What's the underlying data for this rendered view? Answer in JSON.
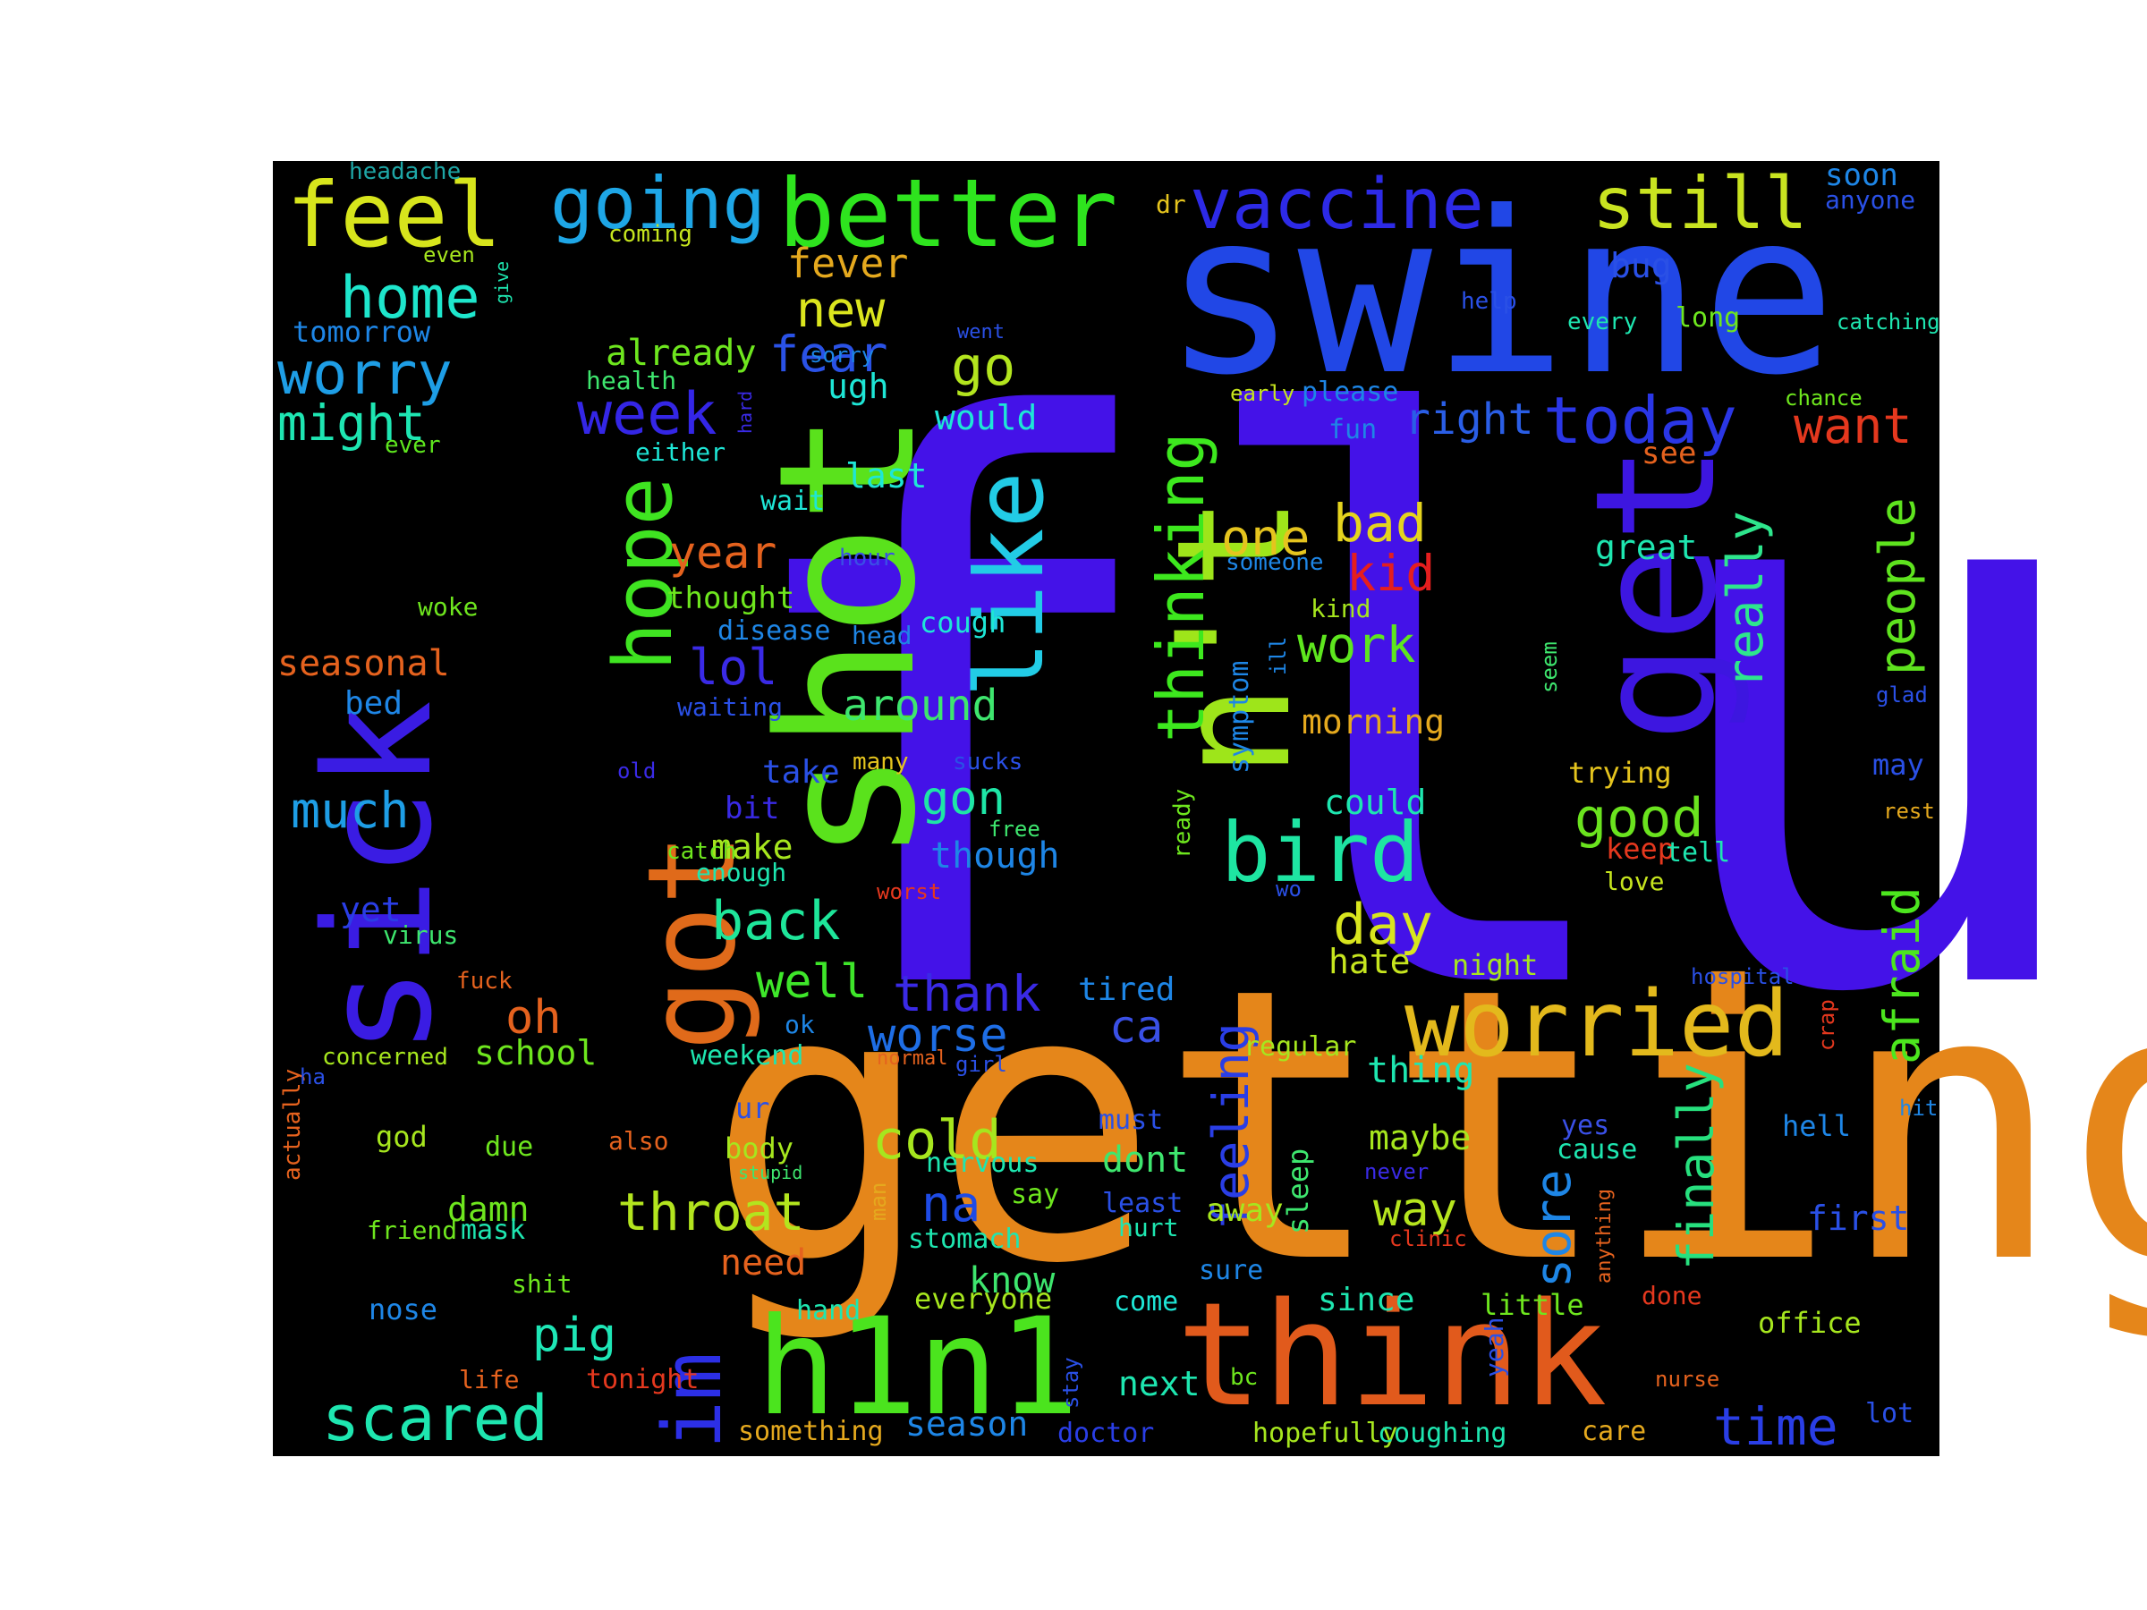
{
  "figure": {
    "background_color": "#000000",
    "page_color": "#ffffff"
  },
  "words": [
    {
      "text": "flu",
      "color": "#4412e8"
    },
    {
      "text": "getting",
      "color": "#e5861a"
    },
    {
      "text": "swine",
      "color": "#2147e6"
    },
    {
      "text": "shot",
      "color": "#5ae21c"
    },
    {
      "text": "n't",
      "color": "#9ee51a"
    },
    {
      "text": "get",
      "color": "#3d16e0"
    },
    {
      "text": "sick",
      "color": "#3a1ce3"
    },
    {
      "text": "think",
      "color": "#e15a1c"
    },
    {
      "text": "h1n1",
      "color": "#4be41e"
    },
    {
      "text": "got",
      "color": "#e06a1a"
    },
    {
      "text": "like",
      "color": "#22cce6"
    },
    {
      "text": "better",
      "color": "#2ee41e"
    },
    {
      "text": "worried",
      "color": "#e3b91c"
    },
    {
      "text": "feel",
      "color": "#d7e51c"
    },
    {
      "text": "vaccine",
      "color": "#2d2ae6"
    },
    {
      "text": "still",
      "color": "#c9e320"
    },
    {
      "text": "going",
      "color": "#1ea6e6"
    },
    {
      "text": "hope",
      "color": "#3fe421"
    },
    {
      "text": "bird",
      "color": "#1ee5a2"
    },
    {
      "text": "im",
      "color": "#2c2fe6"
    },
    {
      "text": "scared",
      "color": "#1ee6b0"
    },
    {
      "text": "today",
      "color": "#2a36e6"
    },
    {
      "text": "thinking",
      "color": "#3de81e"
    },
    {
      "text": "home",
      "color": "#1ee6cc"
    },
    {
      "text": "worry",
      "color": "#1e9ee6"
    },
    {
      "text": "might",
      "color": "#1ee6b2"
    },
    {
      "text": "week",
      "color": "#3426e6"
    },
    {
      "text": "fear",
      "color": "#2a52e6"
    },
    {
      "text": "go",
      "color": "#b3e51e"
    },
    {
      "text": "new",
      "color": "#dbe51e"
    },
    {
      "text": "fever",
      "color": "#e5a91e"
    },
    {
      "text": "really",
      "color": "#2ee68d"
    },
    {
      "text": "people",
      "color": "#5ee31e"
    },
    {
      "text": "feeling",
      "color": "#2a3ee6"
    },
    {
      "text": "afraid",
      "color": "#4ce61e"
    },
    {
      "text": "finally",
      "color": "#27e07e"
    },
    {
      "text": "sore",
      "color": "#1e86e6"
    },
    {
      "text": "one",
      "color": "#e5c41e"
    },
    {
      "text": "bad",
      "color": "#e5d41e"
    },
    {
      "text": "kid",
      "color": "#e51e1e"
    },
    {
      "text": "work",
      "color": "#5ee61e"
    },
    {
      "text": "good",
      "color": "#6ae31e"
    },
    {
      "text": "day",
      "color": "#d8e51e"
    },
    {
      "text": "right",
      "color": "#2a5ee6"
    },
    {
      "text": "want",
      "color": "#e5381e"
    },
    {
      "text": "year",
      "color": "#e5621e"
    },
    {
      "text": "lol",
      "color": "#3a2ae6"
    },
    {
      "text": "around",
      "color": "#3ee66e"
    },
    {
      "text": "back",
      "color": "#1ee69a"
    },
    {
      "text": "gon",
      "color": "#1ee6a6"
    },
    {
      "text": "well",
      "color": "#3ee62a"
    },
    {
      "text": "thank",
      "color": "#3a2ae6"
    },
    {
      "text": "worse",
      "color": "#1e6ee6"
    },
    {
      "text": "ca",
      "color": "#3a50e6"
    },
    {
      "text": "cold",
      "color": "#a6e61e"
    },
    {
      "text": "throat",
      "color": "#b3e51e"
    },
    {
      "text": "na",
      "color": "#1e4be6"
    },
    {
      "text": "much",
      "color": "#1e9ee6"
    },
    {
      "text": "oh",
      "color": "#e5621e"
    },
    {
      "text": "pig",
      "color": "#1ee6b6"
    },
    {
      "text": "time",
      "color": "#2a3ee6"
    },
    {
      "text": "way",
      "color": "#b6e51e"
    },
    {
      "text": "seasonal",
      "color": "#e5621e"
    },
    {
      "text": "already",
      "color": "#6ee61e"
    },
    {
      "text": "tomorrow",
      "color": "#1e86e6"
    },
    {
      "text": "headache",
      "color": "#1ea6a6"
    },
    {
      "text": "coming",
      "color": "#c6e51e"
    },
    {
      "text": "even",
      "color": "#a6e61e"
    },
    {
      "text": "give",
      "color": "#1ee6b0"
    },
    {
      "text": "ugh",
      "color": "#1ee6d6"
    },
    {
      "text": "health",
      "color": "#3ee66e"
    },
    {
      "text": "ever",
      "color": "#5ee61e"
    },
    {
      "text": "hard",
      "color": "#3a2ae6"
    },
    {
      "text": "either",
      "color": "#1ee6d6"
    },
    {
      "text": "sorry",
      "color": "#1e86e6"
    },
    {
      "text": "went",
      "color": "#2a50e6"
    },
    {
      "text": "would",
      "color": "#1ee6d6"
    },
    {
      "text": "last",
      "color": "#1ee6d6"
    },
    {
      "text": "wait",
      "color": "#1ee6d6"
    },
    {
      "text": "hour",
      "color": "#3a50e6"
    },
    {
      "text": "thought",
      "color": "#6ee61e"
    },
    {
      "text": "disease",
      "color": "#1e86e6"
    },
    {
      "text": "head",
      "color": "#1e86e6"
    },
    {
      "text": "cough",
      "color": "#1ee6d6"
    },
    {
      "text": "woke",
      "color": "#6ee61e"
    },
    {
      "text": "bed",
      "color": "#1e86e6"
    },
    {
      "text": "waiting",
      "color": "#2a50e6"
    },
    {
      "text": "take",
      "color": "#2a50e6"
    },
    {
      "text": "many",
      "color": "#e5c41e"
    },
    {
      "text": "sucks",
      "color": "#2a50e6"
    },
    {
      "text": "old",
      "color": "#3a2ae6"
    },
    {
      "text": "bit",
      "color": "#3a2ae6"
    },
    {
      "text": "free",
      "color": "#3ee66e"
    },
    {
      "text": "make",
      "color": "#a6e61e"
    },
    {
      "text": "catch",
      "color": "#6ee61e"
    },
    {
      "text": "enough",
      "color": "#1ee6b0"
    },
    {
      "text": "though",
      "color": "#1e86e6"
    },
    {
      "text": "worst",
      "color": "#e5381e"
    },
    {
      "text": "yet",
      "color": "#2a3ee6"
    },
    {
      "text": "virus",
      "color": "#3ee66e"
    },
    {
      "text": "fuck",
      "color": "#e5621e"
    },
    {
      "text": "concerned",
      "color": "#a6e61e"
    },
    {
      "text": "school",
      "color": "#6ee61e"
    },
    {
      "text": "ok",
      "color": "#1e86e6"
    },
    {
      "text": "weekend",
      "color": "#1ee6b0"
    },
    {
      "text": "normal",
      "color": "#e5621e"
    },
    {
      "text": "girl",
      "color": "#2a50e6"
    },
    {
      "text": "actually",
      "color": "#e5621e"
    },
    {
      "text": "ha",
      "color": "#2a50e6"
    },
    {
      "text": "god",
      "color": "#a6e61e"
    },
    {
      "text": "due",
      "color": "#6ee61e"
    },
    {
      "text": "also",
      "color": "#e5621e"
    },
    {
      "text": "ur",
      "color": "#2a50e6"
    },
    {
      "text": "body",
      "color": "#a6e61e"
    },
    {
      "text": "stupid",
      "color": "#3ee66e"
    },
    {
      "text": "nervous",
      "color": "#1ee6b0"
    },
    {
      "text": "say",
      "color": "#6ee61e"
    },
    {
      "text": "man",
      "color": "#e5a91e"
    },
    {
      "text": "damn",
      "color": "#6ee61e"
    },
    {
      "text": "friend",
      "color": "#6ee61e"
    },
    {
      "text": "mask",
      "color": "#1ee6b0"
    },
    {
      "text": "stomach",
      "color": "#1ee6b0"
    },
    {
      "text": "need",
      "color": "#e5621e"
    },
    {
      "text": "know",
      "color": "#3ee66e"
    },
    {
      "text": "everyone",
      "color": "#a6e61e"
    },
    {
      "text": "hand",
      "color": "#1ee6b0"
    },
    {
      "text": "come",
      "color": "#1ee6d6"
    },
    {
      "text": "nose",
      "color": "#1e86e6"
    },
    {
      "text": "shit",
      "color": "#6ee61e"
    },
    {
      "text": "life",
      "color": "#e5621e"
    },
    {
      "text": "tonight",
      "color": "#e5381e"
    },
    {
      "text": "something",
      "color": "#e5a91e"
    },
    {
      "text": "season",
      "color": "#1e86e6"
    },
    {
      "text": "doctor",
      "color": "#2a3ee6"
    },
    {
      "text": "next",
      "color": "#1ee6b0"
    },
    {
      "text": "stay",
      "color": "#2a50e6"
    },
    {
      "text": "bc",
      "color": "#6ee61e"
    },
    {
      "text": "hopefully",
      "color": "#a6e61e"
    },
    {
      "text": "coughing",
      "color": "#1ee6b0"
    },
    {
      "text": "care",
      "color": "#e5a91e"
    },
    {
      "text": "lot",
      "color": "#2a50e6"
    },
    {
      "text": "nurse",
      "color": "#e5621e"
    },
    {
      "text": "done",
      "color": "#e5381e"
    },
    {
      "text": "anything",
      "color": "#e5621e"
    },
    {
      "text": "yeah",
      "color": "#2a50e6"
    },
    {
      "text": "little",
      "color": "#6ee61e"
    },
    {
      "text": "since",
      "color": "#1ee6b0"
    },
    {
      "text": "office",
      "color": "#a6e61e"
    },
    {
      "text": "first",
      "color": "#2a50e6"
    },
    {
      "text": "hell",
      "color": "#1e86e6"
    },
    {
      "text": "hit",
      "color": "#1e86e6"
    },
    {
      "text": "cause",
      "color": "#1ee6b0"
    },
    {
      "text": "yes",
      "color": "#3a50e6"
    },
    {
      "text": "never",
      "color": "#3a2ae6"
    },
    {
      "text": "clinic",
      "color": "#e5381e"
    },
    {
      "text": "sure",
      "color": "#1e86e6"
    },
    {
      "text": "hurt",
      "color": "#1ee6b0"
    },
    {
      "text": "least",
      "color": "#2a50e6"
    },
    {
      "text": "dont",
      "color": "#3ee66e"
    },
    {
      "text": "must",
      "color": "#2a50e6"
    },
    {
      "text": "tired",
      "color": "#1e86e6"
    },
    {
      "text": "away",
      "color": "#a6e61e"
    },
    {
      "text": "sleep",
      "color": "#3ee66e"
    },
    {
      "text": "maybe",
      "color": "#a6e61e"
    },
    {
      "text": "thing",
      "color": "#1ee6b0"
    },
    {
      "text": "regular",
      "color": "#a6e61e"
    },
    {
      "text": "night",
      "color": "#a6e61e"
    },
    {
      "text": "hate",
      "color": "#c6e51e"
    },
    {
      "text": "hospital",
      "color": "#2a50e6"
    },
    {
      "text": "crap",
      "color": "#e5381e"
    },
    {
      "text": "wo",
      "color": "#2a50e6"
    },
    {
      "text": "ill",
      "color": "#1e86e6"
    },
    {
      "text": "symptom",
      "color": "#1e86e6"
    },
    {
      "text": "ready",
      "color": "#6ee61e"
    },
    {
      "text": "kind",
      "color": "#a6e61e"
    },
    {
      "text": "someone",
      "color": "#1e86e6"
    },
    {
      "text": "morning",
      "color": "#e5a91e"
    },
    {
      "text": "could",
      "color": "#1ee6b0"
    },
    {
      "text": "seem",
      "color": "#3ee66e"
    },
    {
      "text": "trying",
      "color": "#e5c41e"
    },
    {
      "text": "keep",
      "color": "#e5381e"
    },
    {
      "text": "tell",
      "color": "#1ee6b0"
    },
    {
      "text": "love",
      "color": "#c6e51e"
    },
    {
      "text": "great",
      "color": "#1ee6b0"
    },
    {
      "text": "rest",
      "color": "#e5a91e"
    },
    {
      "text": "may",
      "color": "#2a50e6"
    },
    {
      "text": "glad",
      "color": "#2a50e6"
    },
    {
      "text": "see",
      "color": "#e5621e"
    },
    {
      "text": "fun",
      "color": "#1e86e6"
    },
    {
      "text": "early",
      "color": "#c6e51e"
    },
    {
      "text": "please",
      "color": "#1e86e6"
    },
    {
      "text": "chance",
      "color": "#6ee61e"
    },
    {
      "text": "help",
      "color": "#2a50e6"
    },
    {
      "text": "every",
      "color": "#1ee6b0"
    },
    {
      "text": "long",
      "color": "#6ee61e"
    },
    {
      "text": "catching",
      "color": "#1ee6b0"
    },
    {
      "text": "bug",
      "color": "#2a50e6"
    },
    {
      "text": "soon",
      "color": "#1e86e6"
    },
    {
      "text": "anyone",
      "color": "#2a50e6"
    },
    {
      "text": "dr",
      "color": "#e5c41e"
    }
  ]
}
